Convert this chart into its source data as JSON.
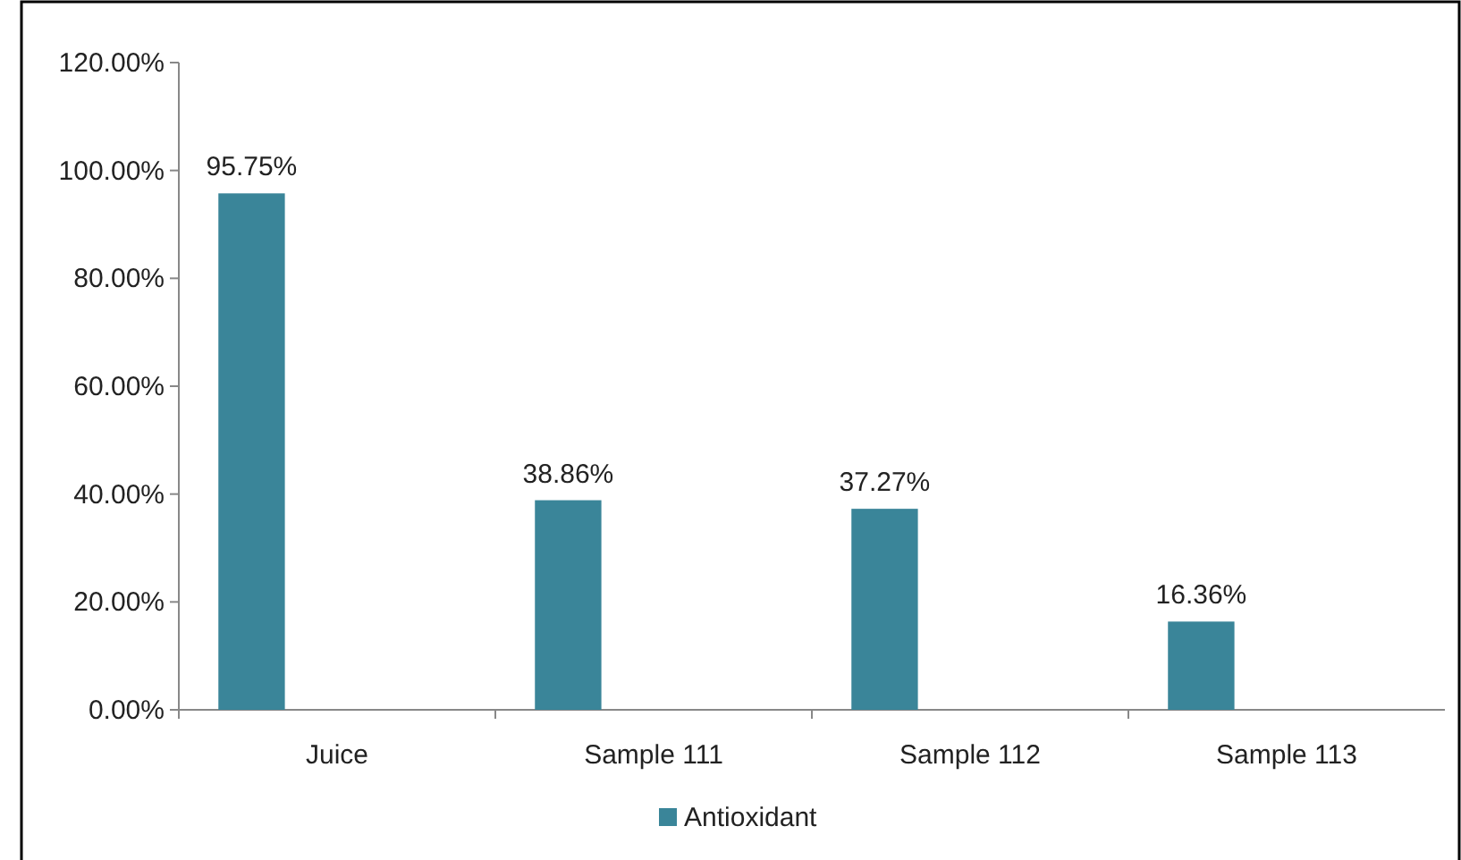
{
  "chart_data": {
    "type": "bar",
    "categories": [
      "Juice",
      "Sample 111",
      "Sample 112",
      "Sample 113"
    ],
    "series": [
      {
        "name": "Antioxidant",
        "color": "#3a8599",
        "values": [
          95.75,
          38.86,
          37.27,
          16.36
        ],
        "value_labels": [
          "95.75%",
          "38.86%",
          "37.27%",
          "16.36%"
        ]
      }
    ],
    "ylim": [
      0,
      120
    ],
    "yticks": [
      {
        "value": 0,
        "label": "0.00%"
      },
      {
        "value": 20,
        "label": "20.00%"
      },
      {
        "value": 40,
        "label": "40.00%"
      },
      {
        "value": 60,
        "label": "60.00%"
      },
      {
        "value": 80,
        "label": "80.00%"
      },
      {
        "value": 100,
        "label": "100.00%"
      },
      {
        "value": 120,
        "label": "120.00%"
      }
    ],
    "grid": false,
    "legend": "bottom"
  }
}
